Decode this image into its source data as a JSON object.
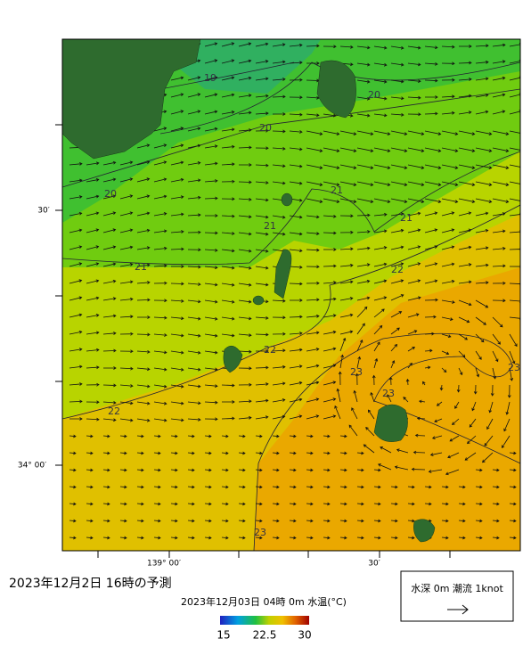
{
  "header": {
    "title": "2023年12月2日  16時の予測"
  },
  "map": {
    "lat_labels": [
      "30′",
      "34° 00′"
    ],
    "lon_labels": [
      "139° 00′",
      "30′"
    ],
    "contour_labels": [
      "19",
      "20",
      "20",
      "20",
      "21",
      "21",
      "21",
      "21",
      "22",
      "22",
      "22",
      "23",
      "23",
      "23",
      "23"
    ]
  },
  "colorbar": {
    "title": "2023年12月03日 04時 0m 水温(°C)",
    "tick_labels": [
      "15",
      "22.5",
      "30"
    ]
  },
  "legend": {
    "text": "水深 0m 潮流 1knot"
  }
}
